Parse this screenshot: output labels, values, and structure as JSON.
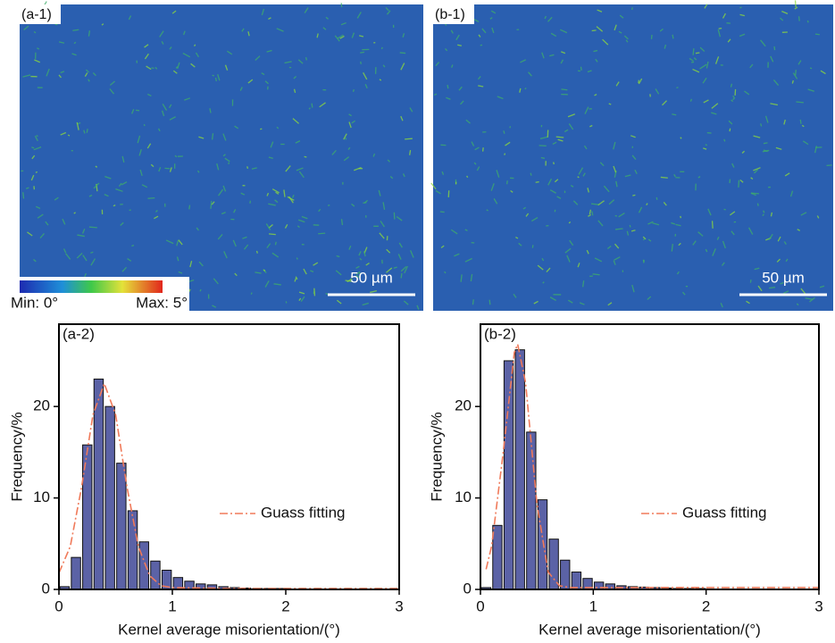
{
  "maps": [
    {
      "label": "(a-1)",
      "scale_bar": "50 µm"
    },
    {
      "label": "(b-1)",
      "scale_bar": "50 µm"
    }
  ],
  "colorbar": {
    "min_label": "Min: 0°",
    "max_label": "Max: 5°"
  },
  "chart_data": [
    {
      "type": "bar",
      "label": "(a-2)",
      "x_label": "Kernel average misorientation/(°)",
      "y_label": "Frequency/%",
      "xlim": [
        0,
        3
      ],
      "ylim": [
        0,
        29
      ],
      "xticks": [
        0,
        1,
        2,
        3
      ],
      "yticks": [
        0,
        10,
        20
      ],
      "series": [
        {
          "type": "bar",
          "color": "#5b62a6",
          "x": [
            0.05,
            0.15,
            0.25,
            0.35,
            0.45,
            0.55,
            0.65,
            0.75,
            0.85,
            0.95,
            1.05,
            1.15,
            1.25,
            1.35,
            1.45,
            1.55,
            1.65,
            1.75,
            1.85,
            1.95
          ],
          "values": [
            0.3,
            3.5,
            15.8,
            23,
            20,
            13.8,
            8.6,
            5.2,
            3.1,
            2.1,
            1.3,
            0.9,
            0.6,
            0.5,
            0.3,
            0.2,
            0.15,
            0.1,
            0.1,
            0.1
          ]
        },
        {
          "type": "line",
          "name": "Guass fitting",
          "color": "#f07a5a",
          "dash": true,
          "x": [
            0,
            0.1,
            0.2,
            0.3,
            0.4,
            0.5,
            0.6,
            0.7,
            0.8,
            0.9,
            1.0,
            1.5,
            2,
            2.5,
            3
          ],
          "values": [
            1.8,
            4.7,
            11.2,
            19.1,
            22.5,
            19.1,
            11.2,
            4.7,
            1.5,
            0.4,
            0.2,
            0.1,
            0.1,
            0.1,
            0.1
          ]
        }
      ]
    },
    {
      "type": "bar",
      "label": "(b-2)",
      "x_label": "Kernel average misorientation/(°)",
      "y_label": "Frequency/%",
      "xlim": [
        0,
        3
      ],
      "ylim": [
        0,
        29
      ],
      "xticks": [
        0,
        1,
        2,
        3
      ],
      "yticks": [
        0,
        10,
        20
      ],
      "series": [
        {
          "type": "bar",
          "color": "#5b62a6",
          "x": [
            0.05,
            0.15,
            0.25,
            0.35,
            0.45,
            0.55,
            0.65,
            0.75,
            0.85,
            0.95,
            1.05,
            1.15,
            1.25,
            1.35,
            1.45,
            1.55,
            1.65,
            1.75,
            1.85,
            1.95
          ],
          "values": [
            0.2,
            7,
            25,
            26.2,
            17.2,
            9.8,
            5.5,
            3.2,
            1.9,
            1.2,
            0.8,
            0.6,
            0.4,
            0.3,
            0.25,
            0.2,
            0.15,
            0.1,
            0.1,
            0.1
          ]
        },
        {
          "type": "line",
          "name": "Guass fitting",
          "color": "#f07a5a",
          "dash": true,
          "x": [
            0.05,
            0.1,
            0.2,
            0.3,
            0.33,
            0.4,
            0.5,
            0.6,
            0.7,
            0.8,
            1.0,
            1.5,
            2,
            2.5,
            3
          ],
          "values": [
            2.2,
            4.8,
            14.8,
            25.9,
            26.8,
            22.6,
            9.4,
            1.9,
            0.4,
            0.2,
            0.2,
            0.2,
            0.2,
            0.2,
            0.2
          ]
        }
      ]
    }
  ]
}
